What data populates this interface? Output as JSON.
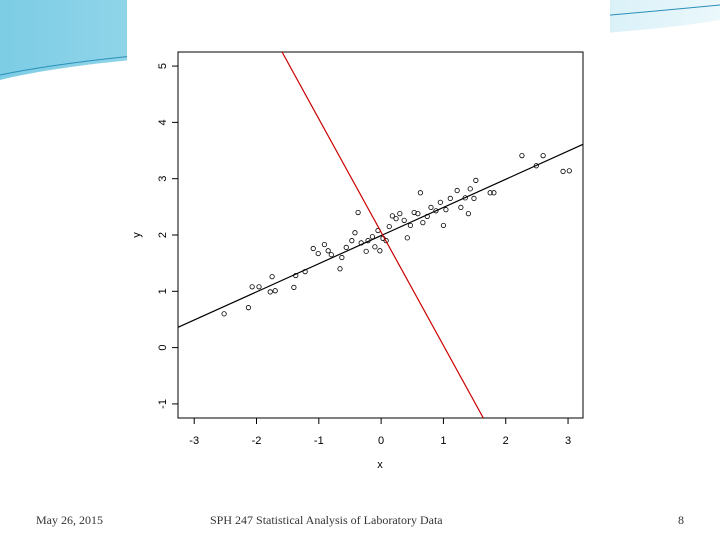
{
  "chart_data": {
    "type": "scatter",
    "xlabel": "x",
    "ylabel": "y",
    "xlim": [
      -3.26,
      3.24
    ],
    "ylim": [
      -1.25,
      5.25
    ],
    "xticks": [
      -3,
      -2,
      -1,
      0,
      1,
      2,
      3
    ],
    "yticks": [
      -1,
      0,
      1,
      2,
      3,
      4,
      5
    ],
    "color": "#000000",
    "x": [
      -2.52,
      -2.13,
      -2.07,
      -1.96,
      -1.75,
      -1.78,
      -1.7,
      -1.4,
      -1.37,
      -1.22,
      -1.09,
      -1.01,
      -0.91,
      -0.85,
      -0.8,
      -0.66,
      -0.63,
      -0.56,
      -0.47,
      -0.42,
      -0.37,
      -0.32,
      -0.24,
      -0.21,
      -0.14,
      -0.1,
      -0.05,
      -0.02,
      0.03,
      0.08,
      0.13,
      0.18,
      0.24,
      0.3,
      0.37,
      0.42,
      0.47,
      0.53,
      0.59,
      0.63,
      0.67,
      0.74,
      0.8,
      0.88,
      0.95,
      1.0,
      1.04,
      1.11,
      1.22,
      1.28,
      1.35,
      1.4,
      1.43,
      1.49,
      1.52,
      1.75,
      1.81,
      2.26,
      2.6,
      2.49,
      2.92,
      3.02
    ],
    "y": [
      0.6,
      0.71,
      1.08,
      1.08,
      1.26,
      0.99,
      1.01,
      1.07,
      1.28,
      1.35,
      1.76,
      1.67,
      1.83,
      1.72,
      1.65,
      1.4,
      1.6,
      1.78,
      1.9,
      2.04,
      2.4,
      1.86,
      1.71,
      1.9,
      1.97,
      1.79,
      2.08,
      1.72,
      1.94,
      1.9,
      2.15,
      2.34,
      2.29,
      2.38,
      2.26,
      1.95,
      2.17,
      2.4,
      2.38,
      2.75,
      2.22,
      2.33,
      2.49,
      2.43,
      2.58,
      2.17,
      2.45,
      2.65,
      2.79,
      2.49,
      2.66,
      2.38,
      2.82,
      2.65,
      2.97,
      2.75,
      2.75,
      3.41,
      3.41,
      3.23,
      3.13,
      3.14
    ],
    "lines": [
      {
        "color": "#000000",
        "x": [
          -3.26,
          3.24
        ],
        "y": [
          0.36,
          3.61
        ]
      },
      {
        "color": "#cc0000",
        "x": [
          -1.59,
          1.64
        ],
        "y": [
          5.25,
          -1.25
        ]
      }
    ]
  },
  "footer": {
    "date": "May 26, 2015",
    "title": "SPH 247 Statistical Analysis of Laboratory Data",
    "page": "8"
  }
}
